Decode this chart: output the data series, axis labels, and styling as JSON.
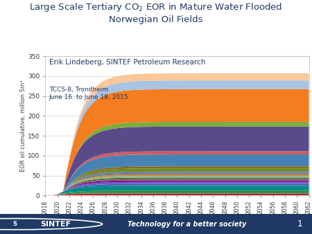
{
  "title_full": "Large Scale Tertiary CO$_2$ EOR in Mature Water Flooded\nNorwegian Oil Fields",
  "annotation1": "Erik Lindeberg, SINTEF Petroleum Research",
  "annotation2": "TCCS-8, Trondheim\nJune 16. to June 18. 2015",
  "ylabel": "EOR oil cumulative, million Sm³",
  "ylim": [
    0,
    350
  ],
  "year_start": 2018,
  "year_end": 2062,
  "footer_text": "Technology for a better society",
  "footer_number": "1",
  "colors": [
    "#8B0000",
    "#cc3333",
    "#2e8b57",
    "#228b22",
    "#008b8b",
    "#4169a0",
    "#6a5acd",
    "#8b008b",
    "#696969",
    "#556b2f",
    "#8fbc8f",
    "#cd853f",
    "#5f7f8a",
    "#7b68b0",
    "#6b8e23",
    "#8b6914",
    "#4682b4",
    "#cd5c5c",
    "#5b4a8a",
    "#7dab3c",
    "#f47d20",
    "#a8c4e0",
    "#f9c89b"
  ],
  "saturation_values": [
    2,
    3,
    4,
    3,
    12,
    5,
    5,
    4,
    3,
    4,
    4,
    4,
    4,
    3,
    8,
    5,
    30,
    8,
    62,
    12,
    82,
    22,
    18
  ],
  "growth_rates": [
    0.5,
    0.5,
    0.4,
    0.4,
    0.42,
    0.38,
    0.38,
    0.38,
    0.38,
    0.38,
    0.38,
    0.38,
    0.38,
    0.38,
    0.4,
    0.38,
    0.44,
    0.38,
    0.44,
    0.4,
    0.45,
    0.43,
    0.44
  ],
  "start_years": [
    2019,
    2019,
    2020,
    2020,
    2020,
    2021,
    2021,
    2021,
    2021,
    2021,
    2021,
    2021,
    2021,
    2021,
    2022,
    2022,
    2021,
    2022,
    2021,
    2023,
    2021,
    2022,
    2022
  ]
}
